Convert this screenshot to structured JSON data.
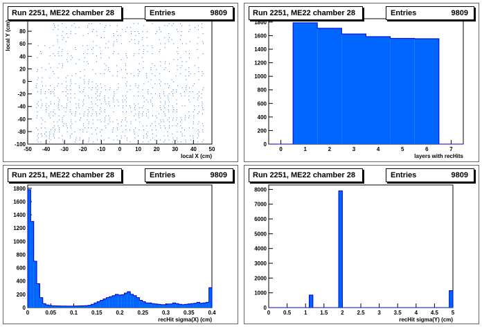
{
  "colors": {
    "fill": "#0066ff",
    "stroke": "#0000cc",
    "marker": "#1a70d0",
    "axis": "#000000"
  },
  "pads": [
    {
      "title": "Run 2251, ME22 chamber 28",
      "stats": {
        "label": "Entries",
        "value": "9809"
      },
      "xlabel": "local X (cm)",
      "ylabel": "local Y (cm)",
      "xticks": [
        "-50",
        "-40",
        "-30",
        "-20",
        "-10",
        "0",
        "10",
        "20",
        "30",
        "40",
        "50"
      ],
      "yticks": [
        "-100",
        "-80",
        "-60",
        "-40",
        "-20",
        "0",
        "20",
        "40",
        "60",
        "80",
        "100"
      ]
    },
    {
      "title": "Run 2251, ME22 chamber 28",
      "stats": {
        "label": "Entries",
        "value": "9809"
      },
      "xlabel": "layers with recHits",
      "ylabel": "",
      "xticks": [
        "0",
        "1",
        "2",
        "3",
        "4",
        "5",
        "6",
        "7"
      ],
      "yticks": [
        "0",
        "200",
        "400",
        "600",
        "800",
        "1000",
        "1200",
        "1400",
        "1600",
        "1800"
      ]
    },
    {
      "title": "Run 2251, ME22 chamber 28",
      "stats": {
        "label": "Entries",
        "value": "9809"
      },
      "xlabel": "recHit sigma(X) (cm)",
      "ylabel": "",
      "xticks": [
        "0",
        "0.05",
        "0.1",
        "0.15",
        "0.2",
        "0.25",
        "0.3",
        "0.35",
        "0.4"
      ],
      "yticks": [
        "0",
        "200",
        "400",
        "600",
        "800",
        "1000",
        "1200",
        "1400",
        "1600",
        "1800"
      ]
    },
    {
      "title": "Run 2251, ME22 chamber 28",
      "stats": {
        "label": "Entries",
        "value": "9809"
      },
      "xlabel": "recHit sigma(Y) (cm)",
      "ylabel": "",
      "xticks": [
        "0",
        "0.5",
        "1",
        "1.5",
        "2",
        "2.5",
        "3",
        "3.5",
        "4",
        "4.5",
        "5"
      ],
      "yticks": [
        "0",
        "1000",
        "2000",
        "3000",
        "4000",
        "5000",
        "6000",
        "7000",
        "8000"
      ]
    }
  ],
  "chart_data": [
    {
      "type": "scatter",
      "xlabel": "local X (cm)",
      "ylabel": "local Y (cm)",
      "xlim": [
        -50,
        50
      ],
      "ylim": [
        -100,
        100
      ],
      "description_of_points": "dense grid of ~9809 recHits spanning x -45..45, y -95..95, denser at negative Y",
      "entries": 9809
    },
    {
      "type": "bar",
      "xlabel": "layers with recHits",
      "xlim": [
        -0.5,
        7.5
      ],
      "ylim": [
        0,
        1850
      ],
      "categories": [
        "1",
        "2",
        "3",
        "4",
        "5",
        "6"
      ],
      "values": [
        1790,
        1710,
        1625,
        1585,
        1560,
        1555
      ]
    },
    {
      "type": "bar",
      "xlabel": "recHit sigma(X) (cm)",
      "xlim": [
        0,
        0.4
      ],
      "ylim": [
        0,
        1850
      ],
      "bin_width": 0.005,
      "values": [
        1780,
        1300,
        700,
        360,
        150,
        60,
        40,
        32,
        28,
        26,
        25,
        24,
        23,
        22,
        22,
        23,
        25,
        26,
        28,
        30,
        35,
        50,
        70,
        90,
        110,
        130,
        150,
        165,
        180,
        200,
        190,
        195,
        220,
        240,
        200,
        180,
        150,
        110,
        90,
        70,
        70,
        60,
        55,
        50,
        45,
        45,
        55,
        55,
        70,
        60,
        50,
        45,
        50,
        55,
        60,
        65,
        80,
        65,
        70,
        80,
        300
      ]
    },
    {
      "type": "bar",
      "xlabel": "recHit sigma(Y) (cm)",
      "xlim": [
        0,
        5
      ],
      "ylim": [
        0,
        8300
      ],
      "bin_width": 0.1,
      "values": [
        0,
        0,
        0,
        0,
        0,
        0,
        0,
        0,
        0,
        0,
        0,
        850,
        0,
        0,
        0,
        0,
        0,
        0,
        0,
        7900,
        0,
        0,
        0,
        0,
        0,
        0,
        0,
        0,
        0,
        0,
        0,
        0,
        0,
        0,
        0,
        0,
        0,
        0,
        0,
        0,
        0,
        0,
        0,
        0,
        0,
        0,
        0,
        0,
        0,
        1150
      ]
    }
  ]
}
